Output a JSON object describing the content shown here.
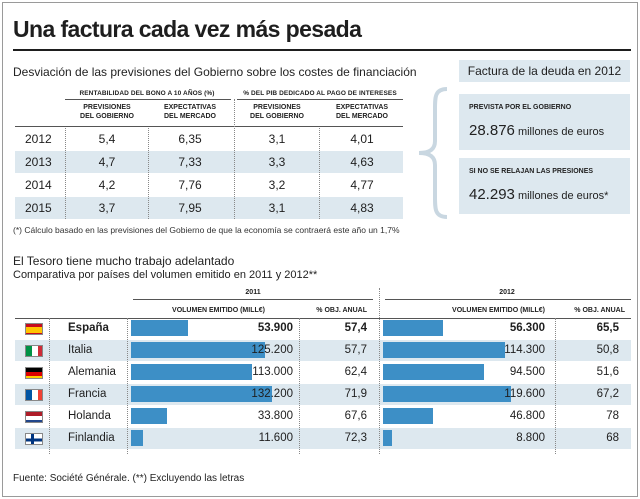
{
  "header": {
    "title": "Una factura cada vez más pesada"
  },
  "table1": {
    "subtitle": "Desviación de las previsiones del Gobierno sobre los costes de financiación",
    "group1": "RENTABILIDAD DEL BONO A 10 AÑOS (%)",
    "group2": "% DEL PIB DEDICADO AL PAGO DE INTERESES",
    "col_gov_1": "PREVISIONES",
    "col_gov_2": "DEL GOBIERNO",
    "col_mkt_1": "EXPECTATIVAS",
    "col_mkt_2": "DEL MERCADO",
    "rows": [
      {
        "year": "2012",
        "bono_gob": "5,4",
        "bono_mkt": "6,35",
        "pib_gob": "3,1",
        "pib_mkt": "4,01"
      },
      {
        "year": "2013",
        "bono_gob": "4,7",
        "bono_mkt": "7,33",
        "pib_gob": "3,3",
        "pib_mkt": "4,63"
      },
      {
        "year": "2014",
        "bono_gob": "4,2",
        "bono_mkt": "7,76",
        "pib_gob": "3,2",
        "pib_mkt": "4,77"
      },
      {
        "year": "2015",
        "bono_gob": "3,7",
        "bono_mkt": "7,95",
        "pib_gob": "3,1",
        "pib_mkt": "4,83"
      }
    ],
    "note": "(*) Cálculo basado en las previsiones del Gobierno de que la economía se contraerá este año un 1,7%"
  },
  "factura": {
    "header": "Factura de la deuda en 2012",
    "box1_label": "PREVISTA POR EL GOBIERNO",
    "box1_value": "28.876",
    "box1_unit": " millones de euros",
    "box2_label": "SI NO SE RELAJAN LAS PRESIONES",
    "box2_value": "42.293",
    "box2_unit": " millones de euros*"
  },
  "chart_section": {
    "title": "El Tesoro tiene mucho trabajo adelantado",
    "subtitle": "Comparativa por países del volumen emitido en 2011 y 2012**",
    "year_2011": "2011",
    "year_2012": "2012",
    "col_volumen": "VOLUMEN EMITIDO (MILL€)",
    "col_obj": "% OBJ. ANUAL",
    "source": "Fuente: Société Générale. (**) Excluyendo las letras"
  },
  "colors": {
    "bar": "#3d8fc6",
    "shade": "#dde8ef"
  },
  "chart_data": {
    "type": "bar",
    "title": "El Tesoro tiene mucho trabajo adelantado",
    "subtitle": "Comparativa por países del volumen emitido en 2011 y 2012**",
    "categories": [
      "España",
      "Italia",
      "Alemania",
      "Francia",
      "Holanda",
      "Finlandia"
    ],
    "flags": [
      "spain-flag-icon",
      "italy-flag-icon",
      "germany-flag-icon",
      "france-flag-icon",
      "netherlands-flag-icon",
      "finland-flag-icon"
    ],
    "series": [
      {
        "name": "2011",
        "values": [
          53900,
          125200,
          113000,
          132200,
          33800,
          11600
        ],
        "labels": [
          "53.900",
          "125.200",
          "113.000",
          "132.200",
          "33.800",
          "11.600"
        ],
        "obj_labels": [
          "57,4",
          "57,7",
          "62,4",
          "71,9",
          "67,6",
          "72,3"
        ]
      },
      {
        "name": "2012",
        "values": [
          56300,
          114300,
          94500,
          119600,
          46800,
          8800
        ],
        "labels": [
          "56.300",
          "114.300",
          "94.500",
          "119.600",
          "46.800",
          "8.800"
        ],
        "obj_labels": [
          "65,5",
          "50,8",
          "51,6",
          "67,2",
          "78",
          "68"
        ]
      }
    ],
    "ylim": [
      0,
      150000
    ]
  }
}
